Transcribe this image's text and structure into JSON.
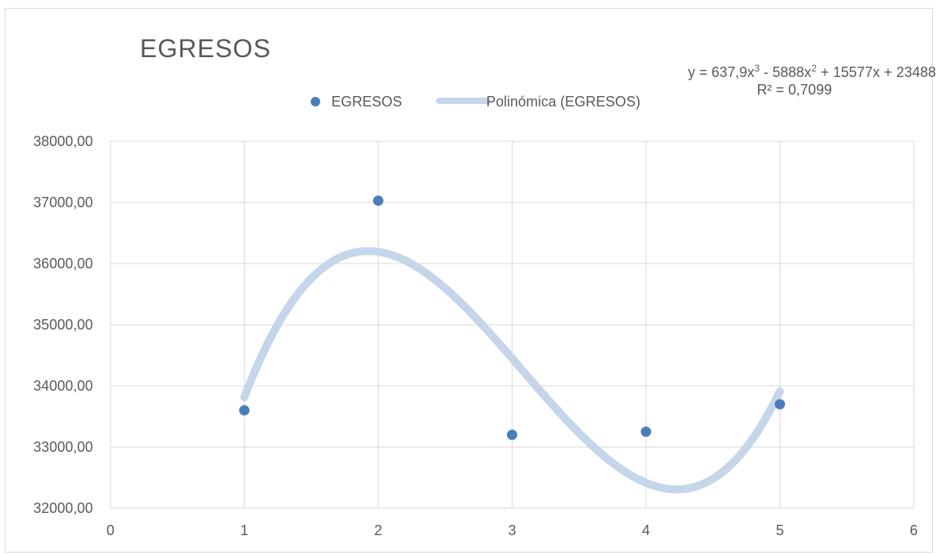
{
  "chart_data": {
    "type": "scatter",
    "title": "EGRESOS",
    "xlabel": "",
    "ylabel": "",
    "xlim": [
      0,
      6
    ],
    "ylim": [
      32000,
      38000
    ],
    "x_ticks": [
      "0",
      "1",
      "2",
      "3",
      "4",
      "5",
      "6"
    ],
    "y_ticks": [
      "32000,00",
      "33000,00",
      "34000,00",
      "35000,00",
      "36000,00",
      "37000,00",
      "38000,00"
    ],
    "grid": true,
    "legend_position": "top",
    "series": [
      {
        "name": "EGRESOS",
        "color": "#4a7ebb",
        "points": [
          {
            "x": 1,
            "y": 33600
          },
          {
            "x": 2,
            "y": 37030
          },
          {
            "x": 3,
            "y": 33200
          },
          {
            "x": 4,
            "y": 33250
          },
          {
            "x": 5,
            "y": 33700
          }
        ]
      }
    ],
    "trendline": {
      "name": "Polinómica (EGRESOS)",
      "type": "polynomial",
      "order": 3,
      "coefficients": [
        637.9,
        -5888,
        15577,
        23488
      ],
      "x_range": [
        1,
        5
      ],
      "color": "#c5d5ea",
      "equation_parts": {
        "prefix": "y = 637,9x",
        "exp1": "3",
        "mid": " - 5888x",
        "exp2": "2",
        "suffix": " + 15577x + 23488"
      },
      "r_squared_text": "R² = 0,7099"
    }
  }
}
